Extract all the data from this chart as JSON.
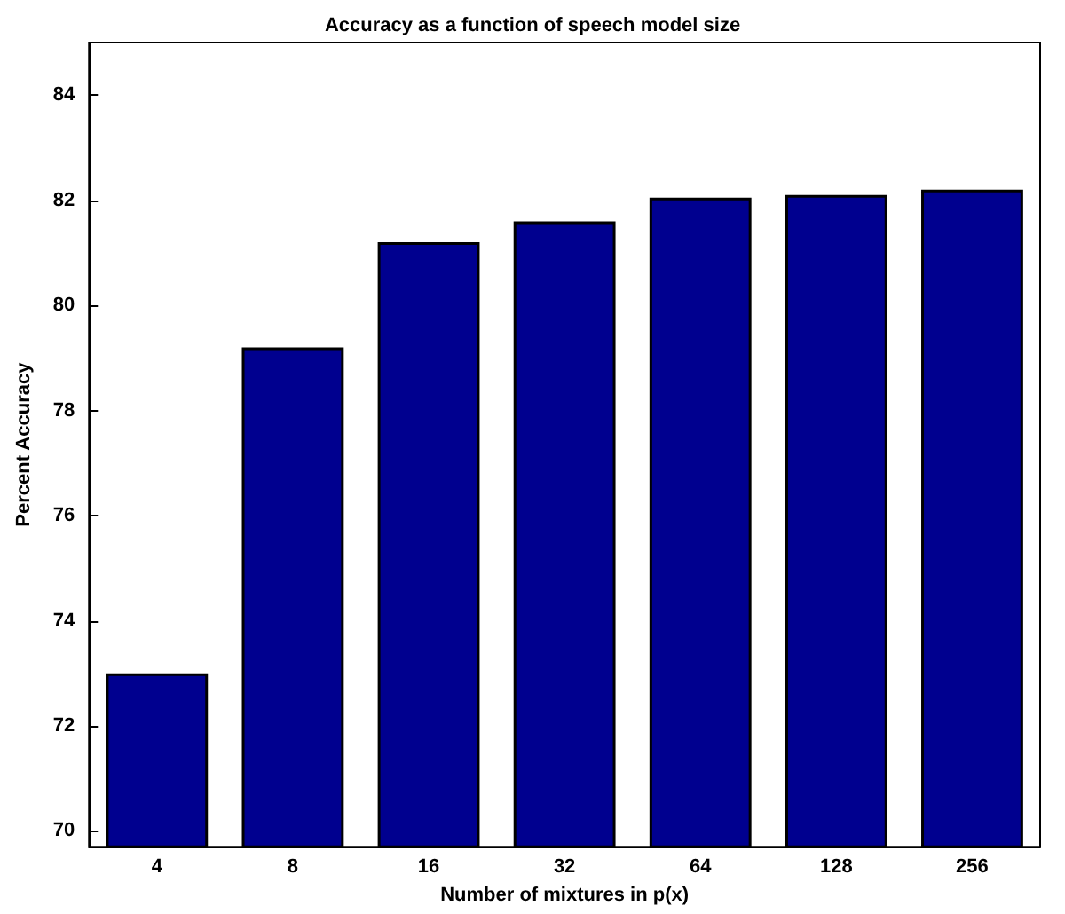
{
  "chart_data": {
    "type": "bar",
    "title": "Accuracy as a function of speech model size",
    "xlabel": "Number of mixtures in p(x)",
    "ylabel": "Percent Accuracy",
    "categories": [
      "4",
      "8",
      "16",
      "32",
      "64",
      "128",
      "256"
    ],
    "values": [
      73.0,
      79.2,
      81.2,
      81.6,
      82.05,
      82.1,
      82.2
    ],
    "color": "#00008f",
    "ylim": [
      69.7,
      85
    ],
    "yticks": [
      70,
      72,
      74,
      76,
      78,
      80,
      82,
      84
    ],
    "grid": false
  }
}
